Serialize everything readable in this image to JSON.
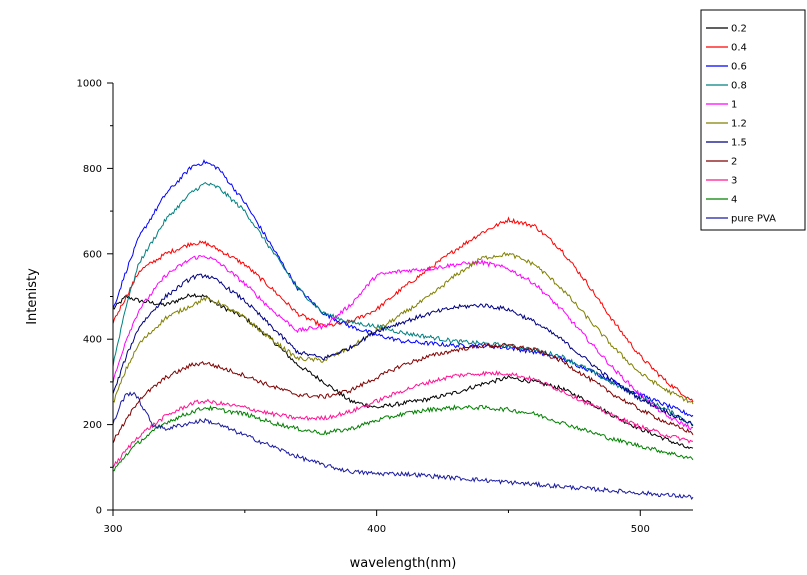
{
  "chart_data": {
    "type": "line",
    "title": "",
    "xlabel": "wavelength(nm)",
    "ylabel": "Intenisty",
    "xlim": [
      300,
      520
    ],
    "ylim": [
      0,
      1000
    ],
    "xticks": [
      300,
      400,
      500
    ],
    "yticks": [
      0,
      200,
      400,
      600,
      800,
      1000
    ],
    "grid": false,
    "legend_position": "top-right",
    "series": [
      {
        "name": "0.2",
        "color": "#000000",
        "x": [
          300,
          305,
          310,
          320,
          330,
          335,
          340,
          350,
          360,
          370,
          380,
          390,
          400,
          410,
          420,
          430,
          440,
          450,
          460,
          470,
          480,
          490,
          500,
          510,
          520
        ],
        "y": [
          470,
          500,
          490,
          480,
          505,
          500,
          480,
          450,
          400,
          340,
          300,
          255,
          240,
          250,
          260,
          275,
          295,
          310,
          300,
          285,
          255,
          220,
          190,
          165,
          140
        ]
      },
      {
        "name": "0.4",
        "color": "#ff0000",
        "x": [
          300,
          305,
          310,
          320,
          330,
          335,
          340,
          350,
          360,
          370,
          380,
          390,
          400,
          410,
          420,
          430,
          440,
          450,
          460,
          470,
          480,
          490,
          500,
          510,
          520
        ],
        "y": [
          440,
          500,
          560,
          600,
          625,
          625,
          610,
          575,
          520,
          460,
          430,
          440,
          470,
          520,
          565,
          610,
          650,
          680,
          665,
          610,
          530,
          440,
          360,
          300,
          255
        ]
      },
      {
        "name": "0.6",
        "color": "#0000ff",
        "x": [
          300,
          305,
          310,
          320,
          330,
          335,
          340,
          350,
          360,
          370,
          380,
          390,
          400,
          410,
          420,
          430,
          440,
          450,
          460,
          470,
          480,
          490,
          500,
          510,
          520
        ],
        "y": [
          470,
          560,
          640,
          740,
          805,
          815,
          800,
          720,
          620,
          520,
          460,
          430,
          410,
          395,
          390,
          385,
          385,
          380,
          370,
          355,
          330,
          300,
          270,
          245,
          220
        ]
      },
      {
        "name": "0.8",
        "color": "#008080",
        "x": [
          300,
          305,
          310,
          320,
          330,
          335,
          340,
          350,
          360,
          370,
          380,
          390,
          400,
          410,
          420,
          430,
          440,
          450,
          460,
          470,
          480,
          490,
          500,
          510,
          520
        ],
        "y": [
          340,
          480,
          580,
          680,
          745,
          765,
          755,
          700,
          610,
          520,
          460,
          440,
          430,
          415,
          405,
          395,
          390,
          385,
          375,
          360,
          330,
          295,
          265,
          235,
          200
        ]
      },
      {
        "name": "1",
        "color": "#ff00ff",
        "x": [
          300,
          305,
          310,
          320,
          330,
          335,
          340,
          350,
          360,
          370,
          380,
          390,
          400,
          410,
          420,
          430,
          440,
          450,
          460,
          470,
          480,
          490,
          500,
          510,
          520
        ],
        "y": [
          300,
          400,
          470,
          550,
          590,
          595,
          580,
          530,
          470,
          420,
          430,
          480,
          550,
          560,
          565,
          575,
          580,
          565,
          530,
          470,
          400,
          330,
          270,
          220,
          190
        ]
      },
      {
        "name": "1.2",
        "color": "#808000",
        "x": [
          300,
          305,
          310,
          320,
          330,
          335,
          340,
          350,
          360,
          370,
          380,
          390,
          400,
          410,
          420,
          430,
          440,
          450,
          460,
          470,
          480,
          490,
          500,
          510,
          520
        ],
        "y": [
          250,
          330,
          390,
          450,
          480,
          495,
          485,
          450,
          400,
          355,
          350,
          380,
          420,
          460,
          500,
          550,
          590,
          600,
          575,
          520,
          450,
          380,
          320,
          280,
          250
        ]
      },
      {
        "name": "1.5",
        "color": "#000080",
        "x": [
          300,
          305,
          310,
          320,
          330,
          335,
          340,
          350,
          360,
          370,
          380,
          390,
          400,
          410,
          420,
          430,
          440,
          450,
          460,
          470,
          480,
          490,
          500,
          510,
          520
        ],
        "y": [
          270,
          360,
          430,
          500,
          545,
          550,
          535,
          490,
          430,
          370,
          355,
          380,
          420,
          440,
          460,
          475,
          480,
          470,
          440,
          400,
          350,
          300,
          260,
          230,
          200
        ]
      },
      {
        "name": "2",
        "color": "#800000",
        "x": [
          300,
          305,
          310,
          320,
          330,
          335,
          340,
          350,
          360,
          370,
          380,
          390,
          400,
          410,
          420,
          430,
          440,
          450,
          460,
          470,
          480,
          490,
          500,
          510,
          520
        ],
        "y": [
          160,
          210,
          260,
          310,
          340,
          345,
          335,
          315,
          290,
          270,
          265,
          280,
          310,
          340,
          360,
          375,
          385,
          385,
          375,
          350,
          310,
          270,
          235,
          205,
          180
        ]
      },
      {
        "name": "3",
        "color": "#ff1493",
        "x": [
          300,
          305,
          310,
          320,
          330,
          335,
          340,
          350,
          360,
          370,
          380,
          390,
          400,
          410,
          420,
          430,
          440,
          450,
          460,
          470,
          480,
          490,
          500,
          510,
          520
        ],
        "y": [
          100,
          140,
          175,
          220,
          250,
          255,
          250,
          240,
          225,
          215,
          215,
          230,
          255,
          280,
          300,
          315,
          320,
          320,
          305,
          280,
          250,
          220,
          195,
          175,
          160
        ]
      },
      {
        "name": "4",
        "color": "#008000",
        "x": [
          300,
          305,
          310,
          320,
          330,
          335,
          340,
          350,
          360,
          370,
          380,
          390,
          400,
          410,
          420,
          430,
          440,
          450,
          460,
          470,
          480,
          490,
          500,
          510,
          520
        ],
        "y": [
          90,
          130,
          160,
          205,
          230,
          240,
          235,
          225,
          205,
          190,
          180,
          190,
          210,
          225,
          235,
          240,
          240,
          235,
          225,
          205,
          185,
          165,
          150,
          135,
          120
        ]
      },
      {
        "name": "pure PVA",
        "color": "#1a1aa0",
        "x": [
          300,
          303,
          305,
          308,
          310,
          315,
          320,
          330,
          335,
          340,
          350,
          360,
          370,
          380,
          390,
          400,
          410,
          420,
          430,
          440,
          450,
          460,
          470,
          480,
          490,
          500,
          510,
          520
        ],
        "y": [
          200,
          250,
          270,
          275,
          255,
          200,
          190,
          205,
          210,
          200,
          175,
          150,
          125,
          105,
          90,
          85,
          85,
          80,
          75,
          70,
          65,
          60,
          55,
          50,
          45,
          40,
          35,
          30
        ]
      }
    ]
  }
}
